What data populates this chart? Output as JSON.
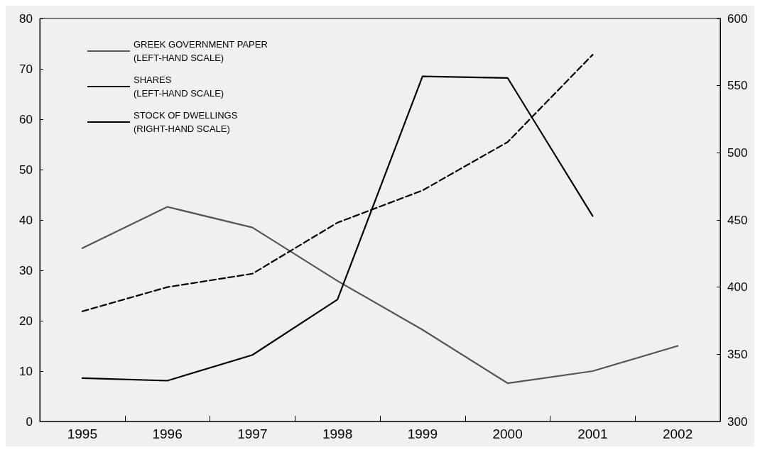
{
  "chart_data": {
    "type": "line",
    "categories": [
      "1995",
      "1996",
      "1997",
      "1998",
      "1999",
      "2000",
      "2001",
      "2002"
    ],
    "series": [
      {
        "name": "GREEK GOVERNMENT PAPER\n(LEFT-HAND SCALE)",
        "color": "#555555",
        "values": [
          34.4,
          42.6,
          38.5,
          27.9,
          18.2,
          7.6,
          10.0,
          15.0
        ]
      },
      {
        "name": "SHARES\n(LEFT-HAND SCALE)",
        "color": "#000000",
        "values": [
          8.6,
          8.1,
          13.2,
          24.2,
          68.5,
          68.2,
          40.8,
          null
        ]
      },
      {
        "name": "STOCK OF DWELLINGS\n(RIGHT-HAND SCALE)",
        "color": "#000000",
        "axis": "y2",
        "line_style": "dashed",
        "values": [
          382,
          400,
          410,
          448,
          472,
          508,
          573,
          null
        ]
      }
    ],
    "ylim": [
      0,
      80
    ],
    "yticks": [
      0,
      10,
      20,
      30,
      40,
      50,
      60,
      70,
      80
    ],
    "y2lim": [
      300,
      600
    ],
    "y2ticks": [
      300,
      350,
      400,
      450,
      500,
      550,
      600
    ],
    "legend": "top left",
    "grid": false,
    "marker": "none",
    "line_style": "solid"
  }
}
